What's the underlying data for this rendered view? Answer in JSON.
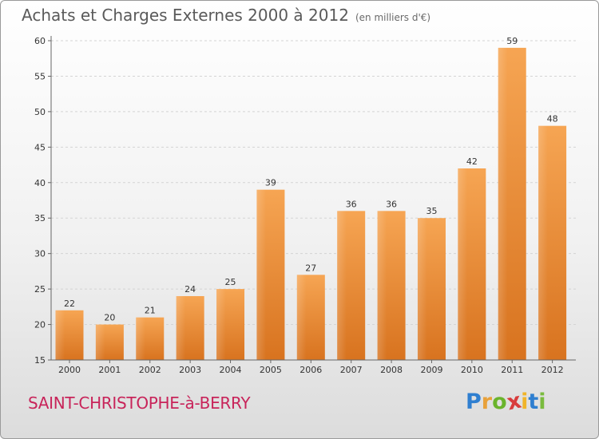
{
  "header": {
    "title": "Achats et Charges Externes 2000 à 2012",
    "subtitle": "(en milliers d'€)"
  },
  "footer": {
    "town": "SAINT-CHRISTOPHE-à-BERRY",
    "brand_letters": [
      "P",
      "r",
      "o",
      "x",
      "i",
      "t",
      "i"
    ],
    "brand_colors": [
      "#2f7fd0",
      "#e8a13a",
      "#6ab42c",
      "#d83c3c",
      "#f0b429",
      "#2f7fd0",
      "#7abb3e"
    ]
  },
  "chart_data": {
    "type": "bar",
    "title": "Achats et Charges Externes 2000 à 2012",
    "subtitle": "(en milliers d'€)",
    "categories": [
      "2000",
      "2001",
      "2002",
      "2003",
      "2004",
      "2005",
      "2006",
      "2007",
      "2008",
      "2009",
      "2010",
      "2011",
      "2012"
    ],
    "values": [
      22,
      20,
      21,
      24,
      25,
      39,
      27,
      36,
      36,
      35,
      42,
      59,
      48
    ],
    "ylim": [
      15,
      60
    ],
    "yticks": [
      15,
      20,
      25,
      30,
      35,
      40,
      45,
      50,
      55,
      60
    ],
    "grid": true,
    "bar_color": "#f0923a",
    "xlabel": "",
    "ylabel": ""
  }
}
